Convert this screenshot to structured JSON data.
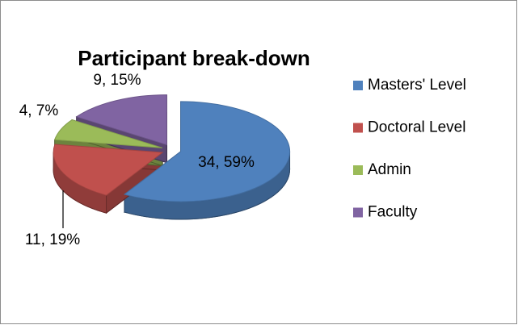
{
  "chart_data": {
    "type": "pie",
    "title": "Participant break-down",
    "categories": [
      "Masters' Level",
      "Doctoral Level",
      "Admin",
      "Faculty"
    ],
    "values": [
      34,
      11,
      4,
      9
    ],
    "value_labels": [
      "34, 59%",
      "11, 19%",
      "4, 7%",
      "9, 15%"
    ],
    "colors": [
      "#4f81bd",
      "#c0504d",
      "#9bbb59",
      "#8064a2"
    ],
    "legend": "right",
    "three_d": true,
    "exploded": true
  }
}
